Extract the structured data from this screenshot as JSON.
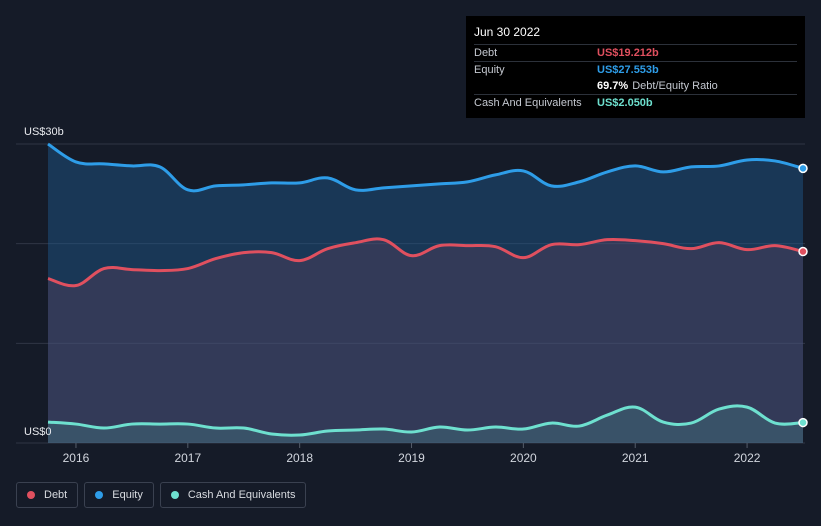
{
  "tooltip": {
    "date": "Jun 30 2022",
    "rows": [
      {
        "label": "Debt",
        "value": "US$19.212b",
        "color": "#e0505f"
      },
      {
        "label": "Equity",
        "value": "US$27.553b",
        "color": "#2e9de8"
      },
      {
        "label": "",
        "value": "69.7%",
        "sub": "Debt/Equity Ratio",
        "color": "#ffffff"
      },
      {
        "label": "Cash And Equivalents",
        "value": "US$2.050b",
        "color": "#6ee0cf"
      }
    ]
  },
  "legend": [
    {
      "label": "Debt",
      "color": "#e0505f"
    },
    {
      "label": "Equity",
      "color": "#2e9de8"
    },
    {
      "label": "Cash And Equivalents",
      "color": "#6ee0cf"
    }
  ],
  "chart_data": {
    "type": "area",
    "ylabel_top": "US$30b",
    "ylabel_bottom": "US$0",
    "ylim": [
      0,
      30
    ],
    "xlim": [
      2015.75,
      2022.5
    ],
    "x_ticks": [
      "2016",
      "2017",
      "2018",
      "2019",
      "2020",
      "2021",
      "2022"
    ],
    "grid": true,
    "legend_position": "bottom-left",
    "series": [
      {
        "name": "Equity",
        "color": "#2e9de8",
        "points": [
          [
            2015.75,
            30.0
          ],
          [
            2016.0,
            28.2
          ],
          [
            2016.25,
            28.0
          ],
          [
            2016.5,
            27.8
          ],
          [
            2016.75,
            27.7
          ],
          [
            2017.0,
            25.4
          ],
          [
            2017.25,
            25.8
          ],
          [
            2017.5,
            25.9
          ],
          [
            2017.75,
            26.1
          ],
          [
            2018.0,
            26.1
          ],
          [
            2018.25,
            26.6
          ],
          [
            2018.5,
            25.4
          ],
          [
            2018.75,
            25.6
          ],
          [
            2019.0,
            25.8
          ],
          [
            2019.25,
            26.0
          ],
          [
            2019.5,
            26.2
          ],
          [
            2019.75,
            26.9
          ],
          [
            2020.0,
            27.3
          ],
          [
            2020.25,
            25.8
          ],
          [
            2020.5,
            26.2
          ],
          [
            2020.75,
            27.2
          ],
          [
            2021.0,
            27.8
          ],
          [
            2021.25,
            27.2
          ],
          [
            2021.5,
            27.7
          ],
          [
            2021.75,
            27.8
          ],
          [
            2022.0,
            28.4
          ],
          [
            2022.25,
            28.3
          ],
          [
            2022.5,
            27.553
          ]
        ]
      },
      {
        "name": "Debt",
        "color": "#e0505f",
        "points": [
          [
            2015.75,
            16.5
          ],
          [
            2016.0,
            15.8
          ],
          [
            2016.25,
            17.5
          ],
          [
            2016.5,
            17.4
          ],
          [
            2016.75,
            17.3
          ],
          [
            2017.0,
            17.5
          ],
          [
            2017.25,
            18.5
          ],
          [
            2017.5,
            19.1
          ],
          [
            2017.75,
            19.1
          ],
          [
            2018.0,
            18.3
          ],
          [
            2018.25,
            19.5
          ],
          [
            2018.5,
            20.1
          ],
          [
            2018.75,
            20.4
          ],
          [
            2019.0,
            18.8
          ],
          [
            2019.25,
            19.8
          ],
          [
            2019.5,
            19.8
          ],
          [
            2019.75,
            19.7
          ],
          [
            2020.0,
            18.6
          ],
          [
            2020.25,
            19.9
          ],
          [
            2020.5,
            19.9
          ],
          [
            2020.75,
            20.4
          ],
          [
            2021.0,
            20.3
          ],
          [
            2021.25,
            20.0
          ],
          [
            2021.5,
            19.5
          ],
          [
            2021.75,
            20.1
          ],
          [
            2022.0,
            19.4
          ],
          [
            2022.25,
            19.8
          ],
          [
            2022.5,
            19.212
          ]
        ]
      },
      {
        "name": "Cash And Equivalents",
        "color": "#6ee0cf",
        "points": [
          [
            2015.75,
            2.1
          ],
          [
            2016.0,
            1.9
          ],
          [
            2016.25,
            1.5
          ],
          [
            2016.5,
            1.9
          ],
          [
            2016.75,
            1.9
          ],
          [
            2017.0,
            1.9
          ],
          [
            2017.25,
            1.5
          ],
          [
            2017.5,
            1.5
          ],
          [
            2017.75,
            0.9
          ],
          [
            2018.0,
            0.8
          ],
          [
            2018.25,
            1.2
          ],
          [
            2018.5,
            1.3
          ],
          [
            2018.75,
            1.4
          ],
          [
            2019.0,
            1.1
          ],
          [
            2019.25,
            1.6
          ],
          [
            2019.5,
            1.3
          ],
          [
            2019.75,
            1.6
          ],
          [
            2020.0,
            1.4
          ],
          [
            2020.25,
            2.0
          ],
          [
            2020.5,
            1.7
          ],
          [
            2020.75,
            2.8
          ],
          [
            2021.0,
            3.6
          ],
          [
            2021.25,
            2.1
          ],
          [
            2021.5,
            2.0
          ],
          [
            2021.75,
            3.4
          ],
          [
            2022.0,
            3.6
          ],
          [
            2022.25,
            2.0
          ],
          [
            2022.5,
            2.05
          ]
        ]
      }
    ]
  }
}
